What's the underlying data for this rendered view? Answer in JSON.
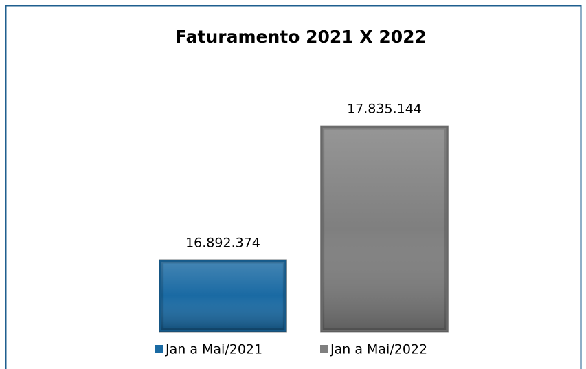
{
  "chart_data": {
    "type": "bar",
    "title": "Faturamento 2021 X 2022",
    "categories": [
      "Jan a Mai/2021",
      "Jan a Mai/2022"
    ],
    "values": [
      16892374,
      17835144
    ],
    "value_labels": [
      "16.892.374",
      "17.835.144"
    ],
    "colors": [
      "#1a6aa3",
      "#7f7f7f"
    ],
    "ylim": [
      16384000,
      18000000
    ],
    "legend": "bottom"
  }
}
